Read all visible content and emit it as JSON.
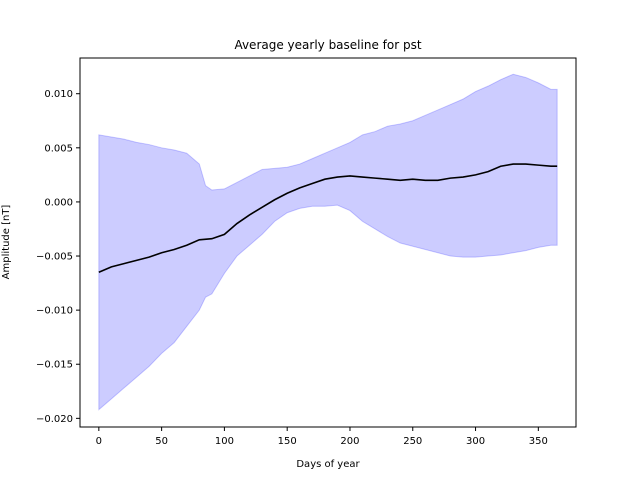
{
  "chart_data": {
    "type": "line",
    "title": "Average yearly baseline for pst",
    "xlabel": "Days of year",
    "ylabel": "Amplitude [nT]",
    "xlim": [
      -15,
      380
    ],
    "ylim": [
      -0.0208,
      0.0133
    ],
    "xticks": [
      0,
      50,
      100,
      150,
      200,
      250,
      300,
      350
    ],
    "xtick_labels": [
      "0",
      "50",
      "100",
      "150",
      "200",
      "250",
      "300",
      "350"
    ],
    "yticks": [
      -0.02,
      -0.015,
      -0.01,
      -0.005,
      0.0,
      0.005,
      0.01
    ],
    "ytick_labels": [
      "−0.020",
      "−0.015",
      "−0.010",
      "−0.005",
      "0.000",
      "0.005",
      "0.010"
    ],
    "grid": false,
    "series": [
      {
        "kind": "line",
        "color": "#000000",
        "x": [
          0,
          10,
          20,
          30,
          40,
          50,
          60,
          70,
          80,
          90,
          100,
          110,
          120,
          130,
          140,
          150,
          160,
          170,
          180,
          190,
          200,
          210,
          220,
          230,
          240,
          250,
          260,
          270,
          280,
          290,
          300,
          310,
          320,
          330,
          340,
          350,
          360,
          365
        ],
        "y": [
          -0.0065,
          -0.006,
          -0.0057,
          -0.0054,
          -0.0051,
          -0.0047,
          -0.0044,
          -0.004,
          -0.0035,
          -0.0034,
          -0.003,
          -0.002,
          -0.0012,
          -0.0005,
          0.0002,
          0.0008,
          0.0013,
          0.0017,
          0.0021,
          0.0023,
          0.0024,
          0.0023,
          0.0022,
          0.0021,
          0.002,
          0.0021,
          0.002,
          0.002,
          0.0022,
          0.0023,
          0.0025,
          0.0028,
          0.0033,
          0.0035,
          0.0035,
          0.0034,
          0.0033,
          0.0033
        ]
      },
      {
        "kind": "band",
        "color": "#0000ff",
        "opacity": 0.2,
        "x": [
          0,
          10,
          20,
          30,
          40,
          50,
          60,
          70,
          80,
          85,
          90,
          100,
          110,
          120,
          130,
          140,
          150,
          160,
          170,
          180,
          190,
          200,
          210,
          220,
          230,
          240,
          250,
          260,
          270,
          280,
          290,
          300,
          310,
          320,
          330,
          340,
          350,
          360,
          365
        ],
        "upper": [
          0.0062,
          0.006,
          0.0058,
          0.0055,
          0.0053,
          0.005,
          0.0048,
          0.0045,
          0.0035,
          0.0015,
          0.0011,
          0.0012,
          0.0018,
          0.0024,
          0.003,
          0.0031,
          0.0032,
          0.0035,
          0.004,
          0.0045,
          0.005,
          0.0055,
          0.0062,
          0.0065,
          0.007,
          0.0072,
          0.0075,
          0.008,
          0.0085,
          0.009,
          0.0095,
          0.0102,
          0.0107,
          0.0113,
          0.0118,
          0.0115,
          0.011,
          0.0104,
          0.0104
        ],
        "lower": [
          -0.0192,
          -0.0182,
          -0.0172,
          -0.0162,
          -0.0152,
          -0.014,
          -0.013,
          -0.0115,
          -0.01,
          -0.0088,
          -0.0085,
          -0.0066,
          -0.005,
          -0.004,
          -0.003,
          -0.0018,
          -0.001,
          -0.0006,
          -0.0004,
          -0.0004,
          -0.0003,
          -0.0008,
          -0.0018,
          -0.0025,
          -0.0032,
          -0.0038,
          -0.0041,
          -0.0044,
          -0.0047,
          -0.005,
          -0.0051,
          -0.0051,
          -0.005,
          -0.0049,
          -0.0047,
          -0.0045,
          -0.0042,
          -0.004,
          -0.004
        ]
      }
    ]
  }
}
